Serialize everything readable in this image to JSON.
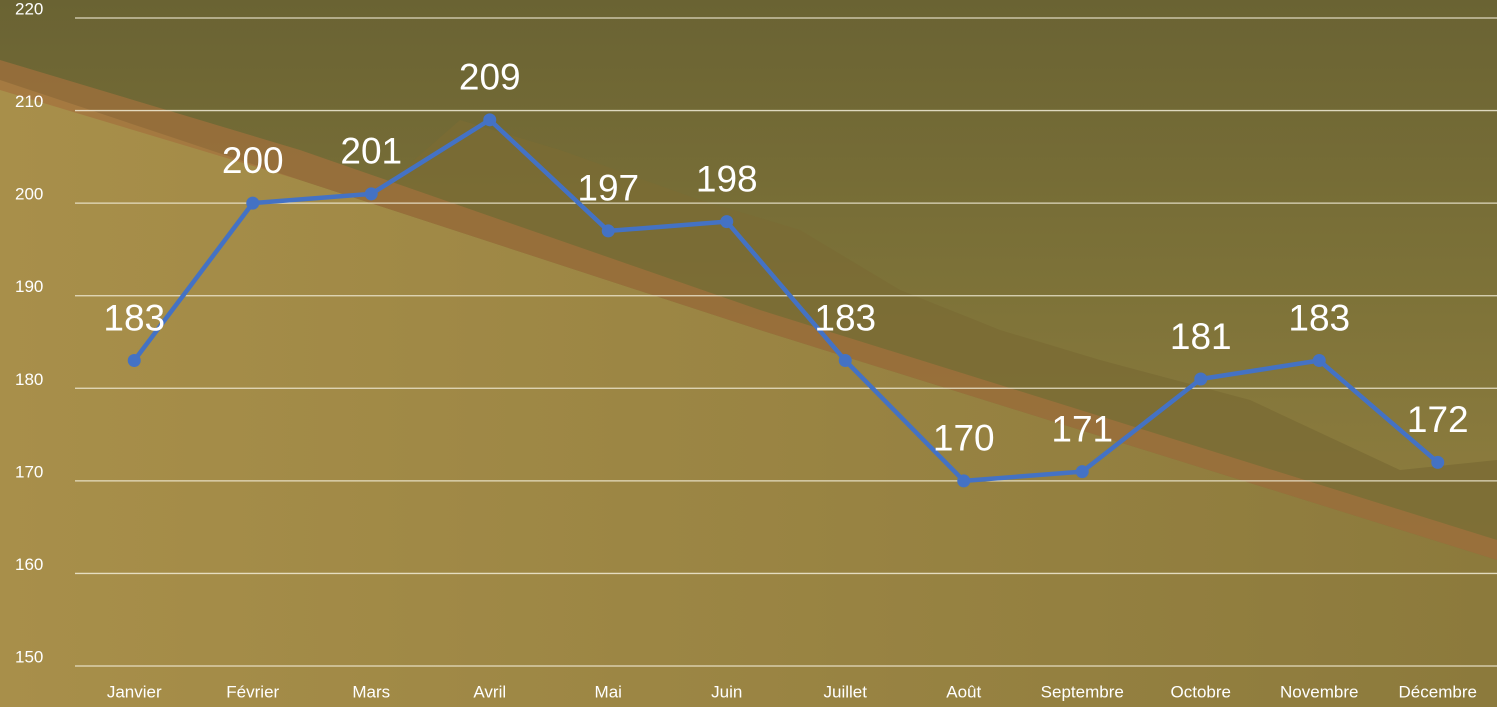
{
  "chart_data": {
    "type": "line",
    "categories": [
      "Janvier",
      "Février",
      "Mars",
      "Avril",
      "Mai",
      "Juin",
      "Juillet",
      "Août",
      "Septembre",
      "Octobre",
      "Novembre",
      "Décembre"
    ],
    "values": [
      183,
      200,
      201,
      209,
      197,
      198,
      183,
      170,
      171,
      181,
      183,
      172
    ],
    "color": "#4472c4",
    "ylim": [
      150,
      220
    ],
    "yticks": [
      150,
      160,
      170,
      180,
      190,
      200,
      210,
      220
    ],
    "grid": true
  }
}
